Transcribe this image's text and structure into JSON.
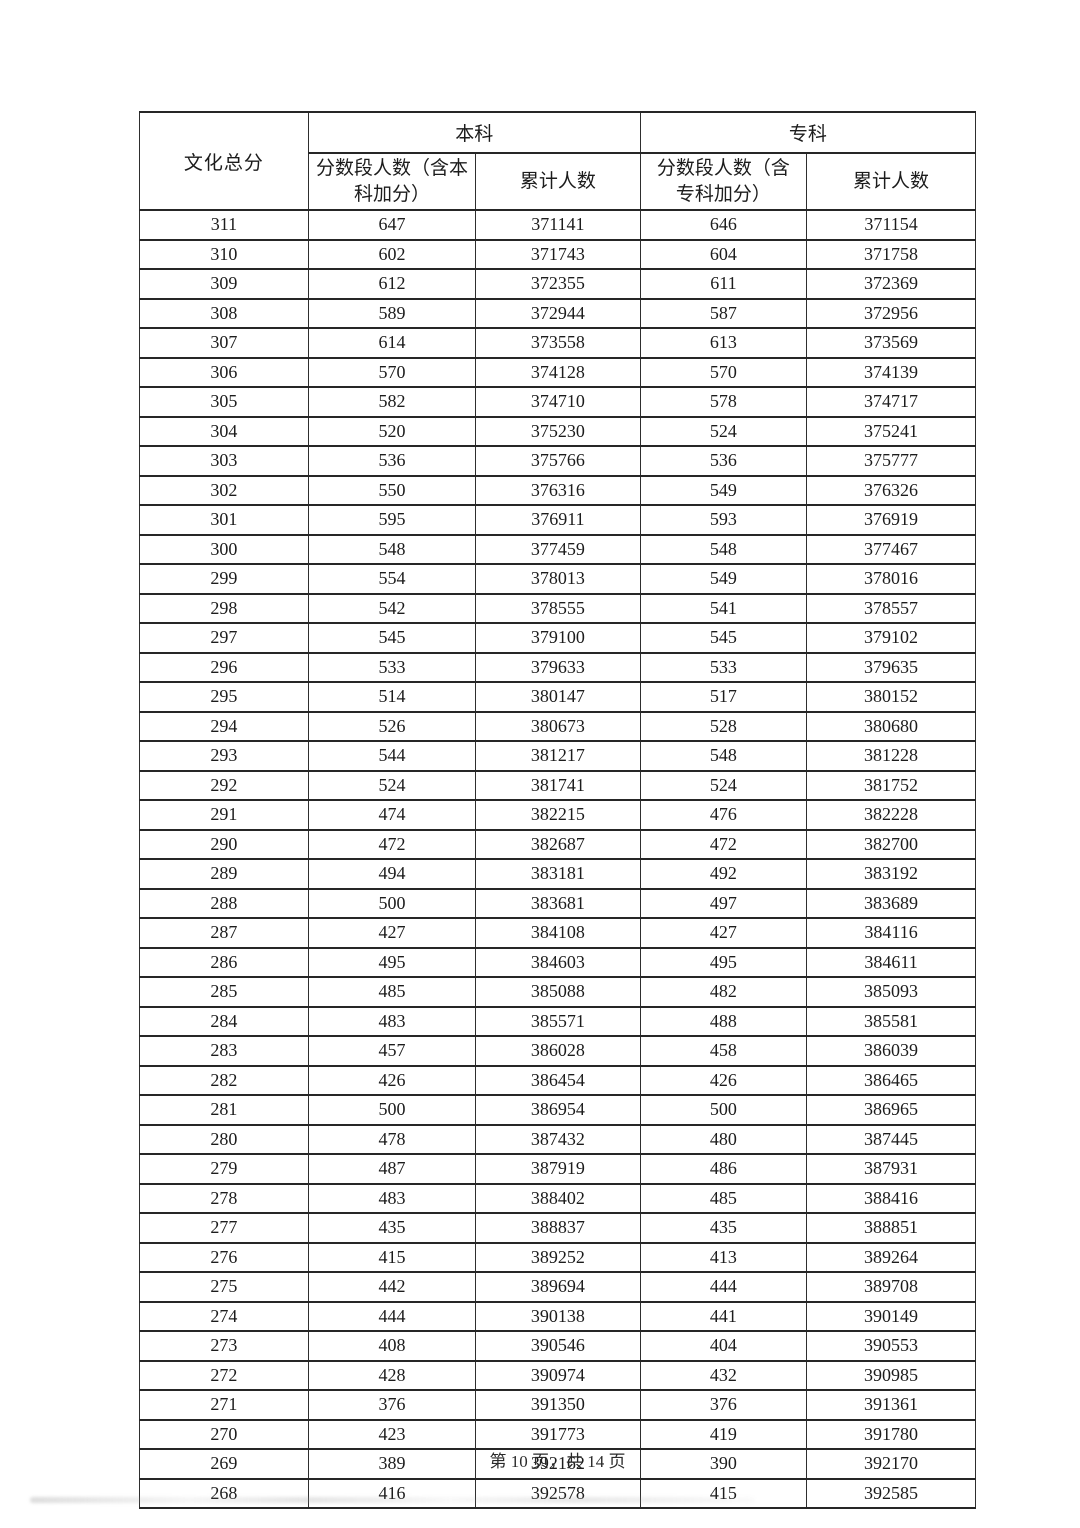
{
  "table": {
    "header": {
      "total_score": "文化总分",
      "benke_group": "本科",
      "zhuanke_group": "专科",
      "benke_segment": "分数段人数（含本科加分）",
      "benke_cumulative": "累计人数",
      "zhuanke_segment": "分数段人数（含专科加分）",
      "zhuanke_cumulative": "累计人数"
    },
    "rows": [
      [
        311,
        647,
        371141,
        646,
        371154
      ],
      [
        310,
        602,
        371743,
        604,
        371758
      ],
      [
        309,
        612,
        372355,
        611,
        372369
      ],
      [
        308,
        589,
        372944,
        587,
        372956
      ],
      [
        307,
        614,
        373558,
        613,
        373569
      ],
      [
        306,
        570,
        374128,
        570,
        374139
      ],
      [
        305,
        582,
        374710,
        578,
        374717
      ],
      [
        304,
        520,
        375230,
        524,
        375241
      ],
      [
        303,
        536,
        375766,
        536,
        375777
      ],
      [
        302,
        550,
        376316,
        549,
        376326
      ],
      [
        301,
        595,
        376911,
        593,
        376919
      ],
      [
        300,
        548,
        377459,
        548,
        377467
      ],
      [
        299,
        554,
        378013,
        549,
        378016
      ],
      [
        298,
        542,
        378555,
        541,
        378557
      ],
      [
        297,
        545,
        379100,
        545,
        379102
      ],
      [
        296,
        533,
        379633,
        533,
        379635
      ],
      [
        295,
        514,
        380147,
        517,
        380152
      ],
      [
        294,
        526,
        380673,
        528,
        380680
      ],
      [
        293,
        544,
        381217,
        548,
        381228
      ],
      [
        292,
        524,
        381741,
        524,
        381752
      ],
      [
        291,
        474,
        382215,
        476,
        382228
      ],
      [
        290,
        472,
        382687,
        472,
        382700
      ],
      [
        289,
        494,
        383181,
        492,
        383192
      ],
      [
        288,
        500,
        383681,
        497,
        383689
      ],
      [
        287,
        427,
        384108,
        427,
        384116
      ],
      [
        286,
        495,
        384603,
        495,
        384611
      ],
      [
        285,
        485,
        385088,
        482,
        385093
      ],
      [
        284,
        483,
        385571,
        488,
        385581
      ],
      [
        283,
        457,
        386028,
        458,
        386039
      ],
      [
        282,
        426,
        386454,
        426,
        386465
      ],
      [
        281,
        500,
        386954,
        500,
        386965
      ],
      [
        280,
        478,
        387432,
        480,
        387445
      ],
      [
        279,
        487,
        387919,
        486,
        387931
      ],
      [
        278,
        483,
        388402,
        485,
        388416
      ],
      [
        277,
        435,
        388837,
        435,
        388851
      ],
      [
        276,
        415,
        389252,
        413,
        389264
      ],
      [
        275,
        442,
        389694,
        444,
        389708
      ],
      [
        274,
        444,
        390138,
        441,
        390149
      ],
      [
        273,
        408,
        390546,
        404,
        390553
      ],
      [
        272,
        428,
        390974,
        432,
        390985
      ],
      [
        271,
        376,
        391350,
        376,
        391361
      ],
      [
        270,
        423,
        391773,
        419,
        391780
      ],
      [
        269,
        389,
        392162,
        390,
        392170
      ],
      [
        268,
        416,
        392578,
        415,
        392585
      ]
    ]
  },
  "footer": {
    "page_label": "第 10 页，共 14 页"
  }
}
